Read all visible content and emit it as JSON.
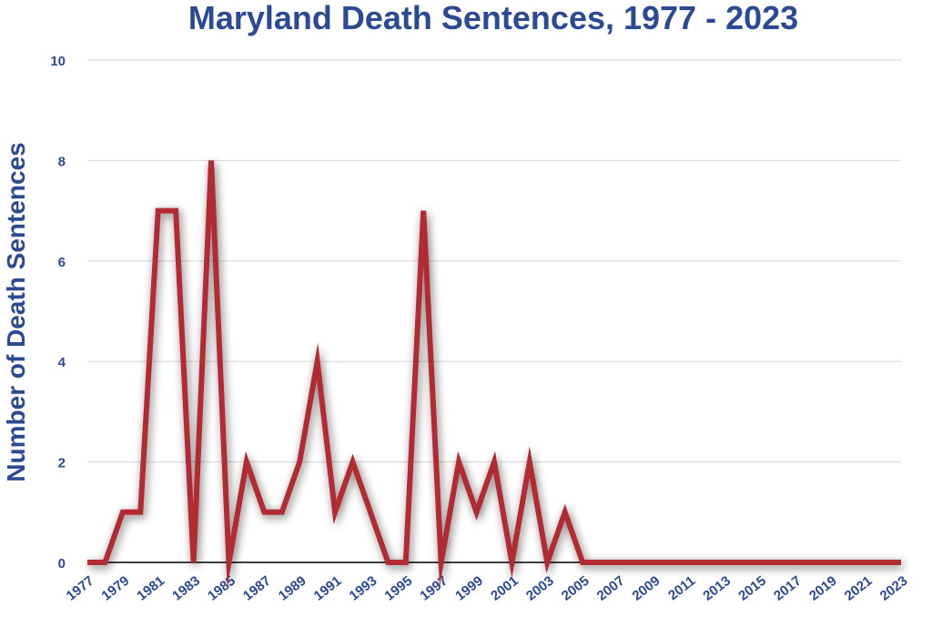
{
  "chart_data": {
    "type": "line",
    "title": "Maryland Death Sentences, 1977 - 2023",
    "xlabel": "",
    "ylabel": "Number of Death Sentences",
    "x": [
      1977,
      1978,
      1979,
      1980,
      1981,
      1982,
      1983,
      1984,
      1985,
      1986,
      1987,
      1988,
      1989,
      1990,
      1991,
      1992,
      1993,
      1994,
      1995,
      1996,
      1997,
      1998,
      1999,
      2000,
      2001,
      2002,
      2003,
      2004,
      2005,
      2006,
      2007,
      2008,
      2009,
      2010,
      2011,
      2012,
      2013,
      2014,
      2015,
      2016,
      2017,
      2018,
      2019,
      2020,
      2021,
      2022,
      2023
    ],
    "x_tick_labels": [
      "1977",
      "1979",
      "1981",
      "1983",
      "1985",
      "1987",
      "1989",
      "1991",
      "1993",
      "1995",
      "1997",
      "1999",
      "2001",
      "2003",
      "2005",
      "2007",
      "2009",
      "2011",
      "2013",
      "2015",
      "2017",
      "2019",
      "2021",
      "2023"
    ],
    "series": [
      {
        "values": [
          0,
          0,
          1,
          1,
          7,
          7,
          0,
          8,
          0,
          2,
          1,
          1,
          2,
          4,
          1,
          2,
          1,
          0,
          0,
          7,
          0,
          2,
          1,
          2,
          0,
          2,
          0,
          1,
          0,
          0,
          0,
          0,
          0,
          0,
          0,
          0,
          0,
          0,
          0,
          0,
          0,
          0,
          0,
          0,
          0,
          0,
          0
        ],
        "color": "#b22a33"
      }
    ],
    "ylim": [
      0,
      10
    ],
    "y_ticks": [
      0,
      2,
      4,
      6,
      8,
      10
    ],
    "grid": true,
    "legend": "none"
  }
}
